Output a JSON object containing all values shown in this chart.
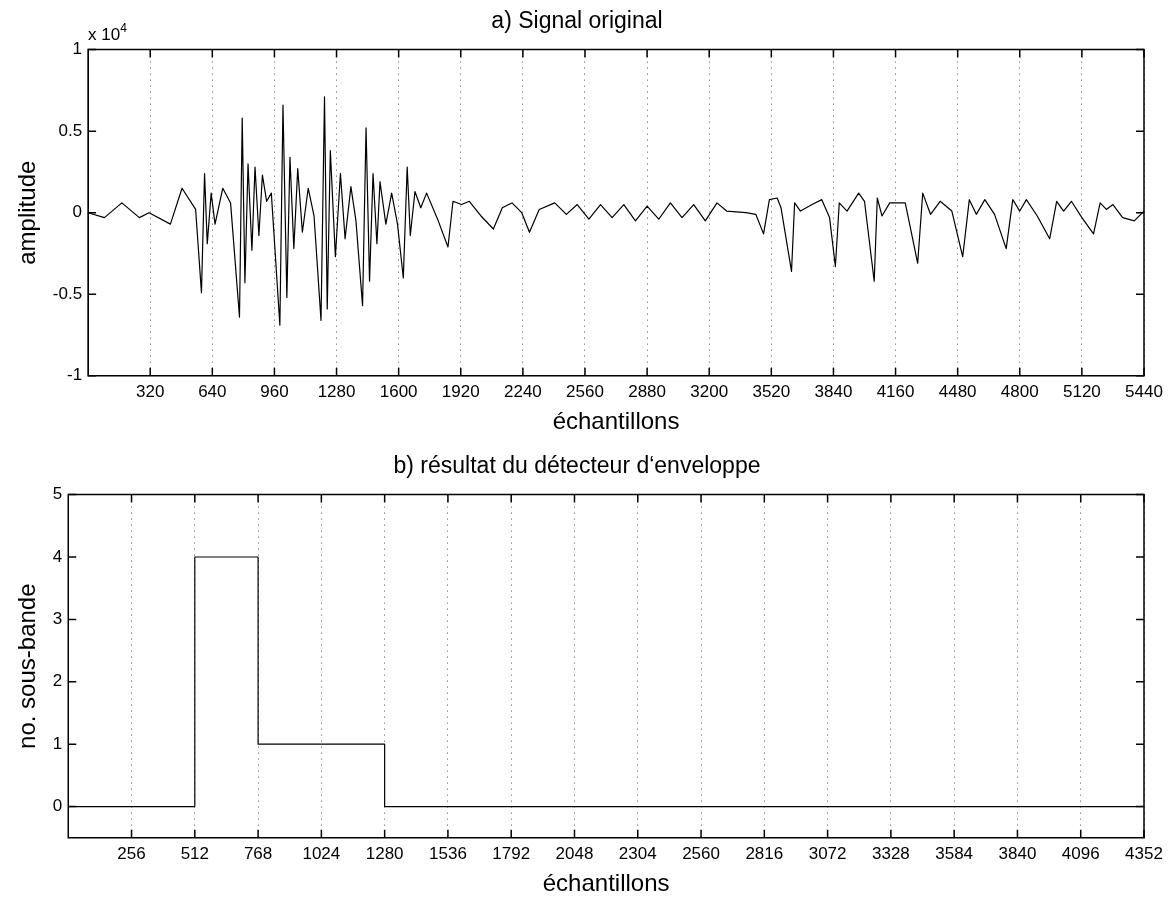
{
  "chart_data": [
    {
      "type": "line",
      "title": "a) Signal original",
      "xlabel": "échantillons",
      "ylabel": "amplitude",
      "annotations": [
        "x 10$^{4}$"
      ],
      "color": "#000000",
      "grid": "x",
      "xlim": [
        0,
        5440
      ],
      "ylim": [
        -1,
        1
      ],
      "xticks": [
        320,
        640,
        960,
        1280,
        1600,
        1920,
        2240,
        2560,
        2880,
        3200,
        3520,
        3840,
        4160,
        4480,
        4800,
        5120,
        5440
      ],
      "yticks": [
        -1,
        -0.5,
        0,
        0.5,
        1
      ],
      "x": [
        0,
        84,
        174,
        264,
        314,
        424,
        484,
        554,
        584,
        600,
        614,
        634,
        654,
        694,
        734,
        780,
        794,
        808,
        824,
        844,
        860,
        880,
        898,
        920,
        944,
        988,
        1004,
        1024,
        1040,
        1060,
        1080,
        1104,
        1134,
        1164,
        1200,
        1218,
        1232,
        1248,
        1274,
        1300,
        1324,
        1354,
        1380,
        1414,
        1432,
        1450,
        1468,
        1488,
        1504,
        1534,
        1564,
        1594,
        1624,
        1644,
        1660,
        1684,
        1714,
        1744,
        1804,
        1854,
        1880,
        1924,
        1964,
        2024,
        2088,
        2134,
        2184,
        2234,
        2274,
        2324,
        2404,
        2464,
        2520,
        2580,
        2640,
        2700,
        2760,
        2820,
        2880,
        2940,
        3000,
        3060,
        3120,
        3180,
        3240,
        3290,
        3390,
        3440,
        3480,
        3510,
        3550,
        3570,
        3624,
        3640,
        3670,
        3730,
        3780,
        3820,
        3850,
        3870,
        3910,
        3970,
        4000,
        4050,
        4066,
        4090,
        4130,
        4210,
        4274,
        4300,
        4340,
        4390,
        4450,
        4506,
        4540,
        4576,
        4620,
        4670,
        4730,
        4764,
        4800,
        4834,
        4890,
        4954,
        4990,
        5026,
        5066,
        5120,
        5180,
        5214,
        5246,
        5280,
        5330,
        5390,
        5440
      ],
      "values": [
        0,
        -0.03,
        0.06,
        -0.03,
        0,
        -0.07,
        0.15,
        0.02,
        -0.49,
        0.24,
        -0.19,
        0.12,
        -0.07,
        0.15,
        0.06,
        -0.64,
        0.58,
        -0.43,
        0.3,
        -0.23,
        0.28,
        -0.14,
        0.23,
        0.07,
        0.12,
        -0.69,
        0.66,
        -0.52,
        0.34,
        -0.22,
        0.27,
        -0.12,
        0.15,
        -0.02,
        -0.66,
        0.71,
        -0.59,
        0.38,
        -0.27,
        0.24,
        -0.16,
        0.16,
        -0.05,
        -0.57,
        0.52,
        -0.42,
        0.24,
        -0.19,
        0.19,
        -0.07,
        0.12,
        -0.07,
        -0.4,
        0.28,
        -0.14,
        0.13,
        0.03,
        0.12,
        -0.05,
        -0.21,
        0.07,
        0.05,
        0.07,
        -0.02,
        -0.1,
        0.03,
        0.06,
        0,
        -0.12,
        0.02,
        0.06,
        -0.01,
        0.05,
        -0.04,
        0.05,
        -0.03,
        0.05,
        -0.05,
        0.04,
        -0.04,
        0.06,
        -0.03,
        0.05,
        -0.05,
        0.06,
        0.01,
        0,
        -0.01,
        -0.13,
        0.08,
        0.09,
        0.03,
        -0.36,
        0.06,
        0.01,
        0.05,
        0.08,
        -0.03,
        -0.33,
        0.06,
        0.01,
        0.12,
        0.07,
        -0.42,
        0.09,
        -0.02,
        0.06,
        0.06,
        -0.31,
        0.12,
        -0.01,
        0.07,
        0.01,
        -0.27,
        0.08,
        -0.01,
        0.08,
        -0.01,
        -0.22,
        0.08,
        0.01,
        0.08,
        -0.02,
        -0.16,
        0.07,
        0.01,
        0.07,
        -0.03,
        -0.13,
        0.06,
        0.02,
        0.05,
        -0.03,
        -0.05,
        0.01
      ]
    },
    {
      "type": "step",
      "title": "b) résultat du détecteur d‘enveloppe",
      "xlabel": "échantillons",
      "ylabel": "no. sous-bande",
      "color": "#000000",
      "grid": "x",
      "xlim": [
        0,
        4352
      ],
      "ylim": [
        -0.5,
        5
      ],
      "xticks": [
        256,
        512,
        768,
        1024,
        1280,
        1536,
        1792,
        2048,
        2304,
        2560,
        2816,
        3072,
        3328,
        3584,
        3840,
        4096,
        4352
      ],
      "yticks": [
        0,
        1,
        2,
        3,
        4,
        5
      ],
      "x": [
        0,
        512,
        768,
        1280,
        4352
      ],
      "values": [
        0,
        4,
        1,
        0,
        0
      ]
    }
  ]
}
